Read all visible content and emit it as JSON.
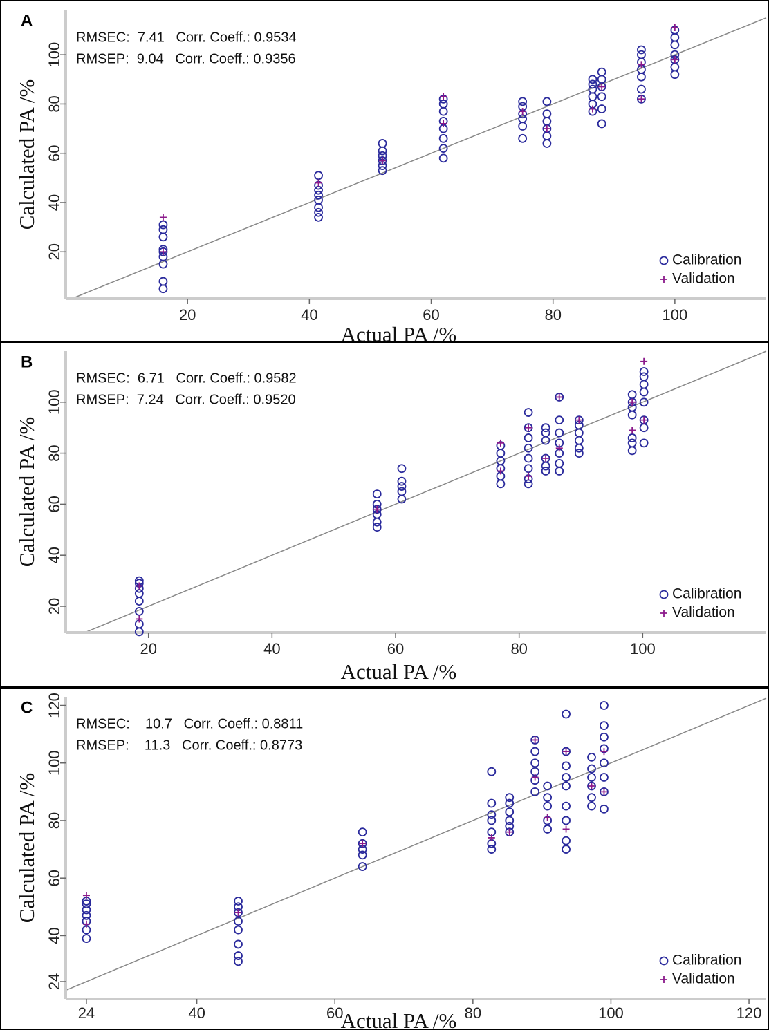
{
  "chart_data": [
    {
      "type": "scatter",
      "panel": "A",
      "x_label": "Actual PA /%",
      "y_label": "Calculated PA /%",
      "annotations": [
        "RMSEC:  7.41   Corr. Coeff.: 0.9534",
        "RMSEP:  9.04   Corr. Coeff.: 0.9356"
      ],
      "xlim": [
        0,
        115
      ],
      "ylim": [
        1,
        118
      ],
      "xticks": [
        20,
        40,
        60,
        80,
        100
      ],
      "yticks": [
        20,
        40,
        60,
        80,
        100
      ],
      "identity_line": true,
      "series": [
        {
          "name": "Calibration",
          "color": "#2a2a9c",
          "marker": "circle",
          "x": [
            16,
            16,
            16,
            16,
            16,
            16,
            16,
            16,
            16,
            41.5,
            41.5,
            41.5,
            41.5,
            41.5,
            41.5,
            41.5,
            41.5,
            52,
            52,
            52,
            52,
            52,
            52,
            62,
            62,
            62,
            62,
            62,
            62,
            62,
            62,
            75,
            75,
            75,
            75,
            75,
            75,
            79,
            79,
            79,
            79,
            79,
            79,
            86.5,
            86.5,
            86.5,
            86.5,
            86.5,
            86.5,
            88,
            88,
            88,
            88,
            88,
            88,
            94.5,
            94.5,
            94.5,
            94.5,
            94.5,
            94.5,
            94.5,
            100,
            100,
            100,
            100,
            100,
            100,
            100
          ],
          "values": [
            5,
            8,
            15,
            18,
            20,
            21,
            26,
            29,
            31,
            34,
            36,
            38,
            41,
            43,
            45,
            47,
            51,
            53,
            55,
            57,
            59,
            61,
            64,
            58,
            62,
            66,
            70,
            73,
            77,
            80,
            82,
            66,
            71,
            74,
            76,
            79,
            81,
            64,
            67,
            70,
            73,
            76,
            81,
            77,
            80,
            83,
            86,
            88,
            90,
            72,
            78,
            83,
            87,
            90,
            93,
            82,
            86,
            91,
            94,
            97,
            100,
            102,
            92,
            95,
            98,
            100,
            104,
            107,
            110
          ]
        },
        {
          "name": "Validation",
          "color": "#8b1a8b",
          "marker": "plus",
          "x": [
            16,
            16,
            41.5,
            52,
            62,
            62,
            75,
            79,
            86.5,
            88,
            94.5,
            94.5,
            100,
            100
          ],
          "values": [
            34,
            20,
            48,
            57,
            83,
            72,
            77,
            70,
            78,
            87,
            82,
            96,
            111,
            98
          ]
        }
      ]
    },
    {
      "type": "scatter",
      "panel": "B",
      "x_label": "Actual PA /%",
      "y_label": "Calculated PA /%",
      "annotations": [
        "RMSEC:  6.71   Corr. Coeff.: 0.9582",
        "RMSEP:  7.24   Corr. Coeff.: 0.9520"
      ],
      "xlim": [
        6.6,
        120
      ],
      "ylim": [
        9.7,
        120
      ],
      "xticks": [
        20,
        40,
        60,
        80,
        100
      ],
      "yticks": [
        20,
        40,
        60,
        80,
        100
      ],
      "identity_line": true,
      "series": [
        {
          "name": "Calibration",
          "color": "#2a2a9c",
          "marker": "circle",
          "x": [
            18.5,
            18.5,
            18.5,
            18.5,
            18.5,
            18.5,
            18.5,
            18.5,
            57,
            57,
            57,
            57,
            57,
            57,
            61,
            61,
            61,
            61,
            61,
            77,
            77,
            77,
            77,
            77,
            77,
            81.5,
            81.5,
            81.5,
            81.5,
            81.5,
            81.5,
            81.5,
            81.5,
            84.3,
            84.3,
            84.3,
            84.3,
            84.3,
            84.3,
            86.5,
            86.5,
            86.5,
            86.5,
            86.5,
            86.5,
            86.5,
            89.7,
            89.7,
            89.7,
            89.7,
            89.7,
            89.7,
            98.3,
            98.3,
            98.3,
            98.3,
            98.3,
            98.3,
            98.3,
            100.2,
            100.2,
            100.2,
            100.2,
            100.2,
            100.2,
            100.2,
            100.2
          ],
          "values": [
            10,
            13,
            18,
            22,
            25,
            27,
            29,
            30,
            51,
            53,
            56,
            58,
            60,
            64,
            62,
            65,
            67,
            69,
            74,
            68,
            71,
            74,
            77,
            80,
            83,
            68,
            70,
            74,
            78,
            82,
            86,
            90,
            96,
            73,
            75,
            78,
            85,
            88,
            90,
            73,
            76,
            80,
            84,
            88,
            93,
            102,
            80,
            82,
            85,
            88,
            91,
            93,
            81,
            84,
            86,
            95,
            98,
            100,
            103,
            84,
            90,
            93,
            100,
            104,
            107,
            110,
            112
          ]
        },
        {
          "name": "Validation",
          "color": "#8b1a8b",
          "marker": "plus",
          "x": [
            18.5,
            18.5,
            57,
            77,
            77,
            81.5,
            81.5,
            84.3,
            86.5,
            86.5,
            89.7,
            98.3,
            98.3,
            100.2,
            100.2
          ],
          "values": [
            15,
            28,
            58,
            84,
            73,
            90,
            71,
            78,
            102,
            82,
            93,
            89,
            100,
            116,
            93
          ]
        }
      ]
    },
    {
      "type": "scatter",
      "panel": "C",
      "x_label": "Actual PA /%",
      "y_label": "Calculated PA /%",
      "annotations": [
        "RMSEC:    10.7   Corr. Coeff.: 0.8811",
        "RMSEP:    11.3   Corr. Coeff.: 0.8773"
      ],
      "xlim": [
        21,
        122.5
      ],
      "ylim": [
        18,
        123
      ],
      "xticks": [
        24,
        40,
        60,
        80,
        100,
        120
      ],
      "yticks": [
        24,
        40,
        60,
        80,
        100,
        120
      ],
      "identity_line": true,
      "series": [
        {
          "name": "Calibration",
          "color": "#2a2a9c",
          "marker": "circle",
          "x": [
            24,
            24,
            24,
            24,
            24,
            24,
            24,
            46,
            46,
            46,
            46,
            46,
            46,
            46,
            46,
            64,
            64,
            64,
            64,
            64,
            82.7,
            82.7,
            82.7,
            82.7,
            82.7,
            82.7,
            82.7,
            85.3,
            85.3,
            85.3,
            85.3,
            85.3,
            85.3,
            89,
            89,
            89,
            89,
            89,
            89,
            90.8,
            90.8,
            90.8,
            90.8,
            90.8,
            93.5,
            93.5,
            93.5,
            93.5,
            93.5,
            93.5,
            93.5,
            93.5,
            93.5,
            97.2,
            97.2,
            97.2,
            97.2,
            97.2,
            97.2,
            99,
            99,
            99,
            99,
            99,
            99,
            99,
            99
          ],
          "values": [
            39,
            42,
            45,
            47,
            49,
            51,
            52,
            31,
            33,
            37,
            42,
            45,
            48,
            50,
            52,
            64,
            68,
            70,
            72,
            76,
            70,
            72,
            76,
            80,
            82,
            86,
            97,
            76,
            78,
            80,
            83,
            86,
            88,
            90,
            94,
            97,
            100,
            104,
            108,
            77,
            80,
            85,
            88,
            92,
            70,
            73,
            80,
            85,
            92,
            95,
            99,
            104,
            117,
            85,
            88,
            92,
            95,
            98,
            102,
            84,
            90,
            95,
            100,
            105,
            109,
            113,
            120
          ]
        },
        {
          "name": "Validation",
          "color": "#8b1a8b",
          "marker": "plus",
          "x": [
            24,
            24,
            46,
            64,
            82.7,
            85.3,
            89,
            89,
            90.8,
            93.5,
            93.5,
            97.2,
            99,
            99
          ],
          "values": [
            54,
            44,
            48,
            72,
            74,
            76,
            108,
            95,
            81,
            104,
            77,
            92,
            104,
            90
          ]
        }
      ]
    }
  ]
}
